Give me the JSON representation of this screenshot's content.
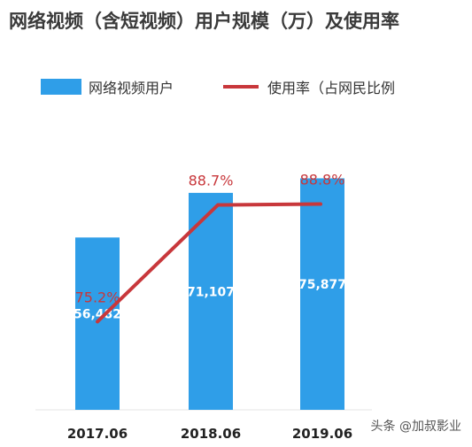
{
  "title": "网络视频（含短视频）用户规模（万）及使用率",
  "legend": {
    "bar": "网络视频用户",
    "line": "使用率（占网民比例"
  },
  "colors": {
    "bar": "#2f9ee8",
    "line": "#c8373b",
    "bar_label": "#ffffff",
    "line_label": "#c8373b"
  },
  "watermark": "头条 @加叔影业",
  "chart_data": {
    "type": "bar",
    "title": "网络视频（含短视频）用户规模（万）及使用率",
    "categories": [
      "2017.06",
      "2018.06",
      "2019.06"
    ],
    "series": [
      {
        "name": "网络视频用户",
        "type": "bar",
        "values": [
          56482,
          71107,
          75877
        ],
        "labels": [
          "56,482",
          "71,107",
          "75,877"
        ]
      },
      {
        "name": "使用率（占网民比例",
        "type": "line",
        "values": [
          75.2,
          88.7,
          88.8
        ],
        "labels": [
          "75.2%",
          "88.7%",
          "88.8%"
        ]
      }
    ],
    "ylim_bar": [
      0,
      85000
    ],
    "ylim_line": [
      65,
      95
    ],
    "grid": false,
    "legend_position": "top"
  }
}
